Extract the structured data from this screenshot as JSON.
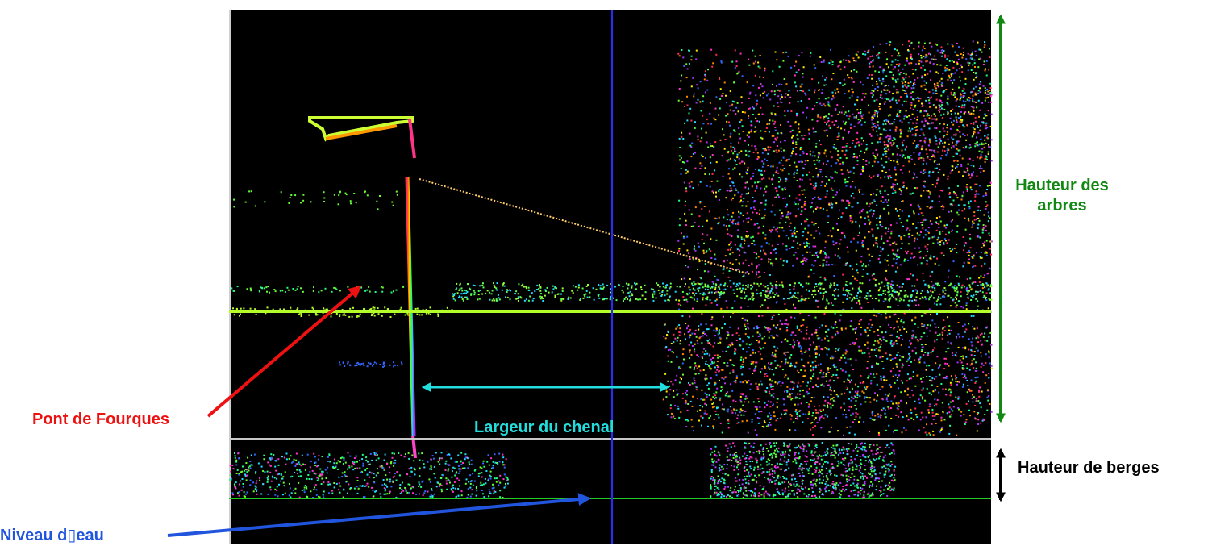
{
  "labels": {
    "pont_de_fourques": "Pont de Fourques",
    "niveau_eau": "Niveau d▯eau",
    "largeur_du_chenal": "Largeur du chenal",
    "hauteur_des_arbres": "Hauteur des arbres",
    "hauteur_de_berges": "Hauteur de berges"
  },
  "colors": {
    "background": "#000000",
    "pont_label": "#ee1111",
    "niveau_label": "#2255dd",
    "largeur_label": "#22dddd",
    "arbres_label": "#118811",
    "berges_label": "#000000",
    "water_line": "#22cc22",
    "bank_line": "#c8c8c8",
    "center_line": "#2a2aff"
  }
}
